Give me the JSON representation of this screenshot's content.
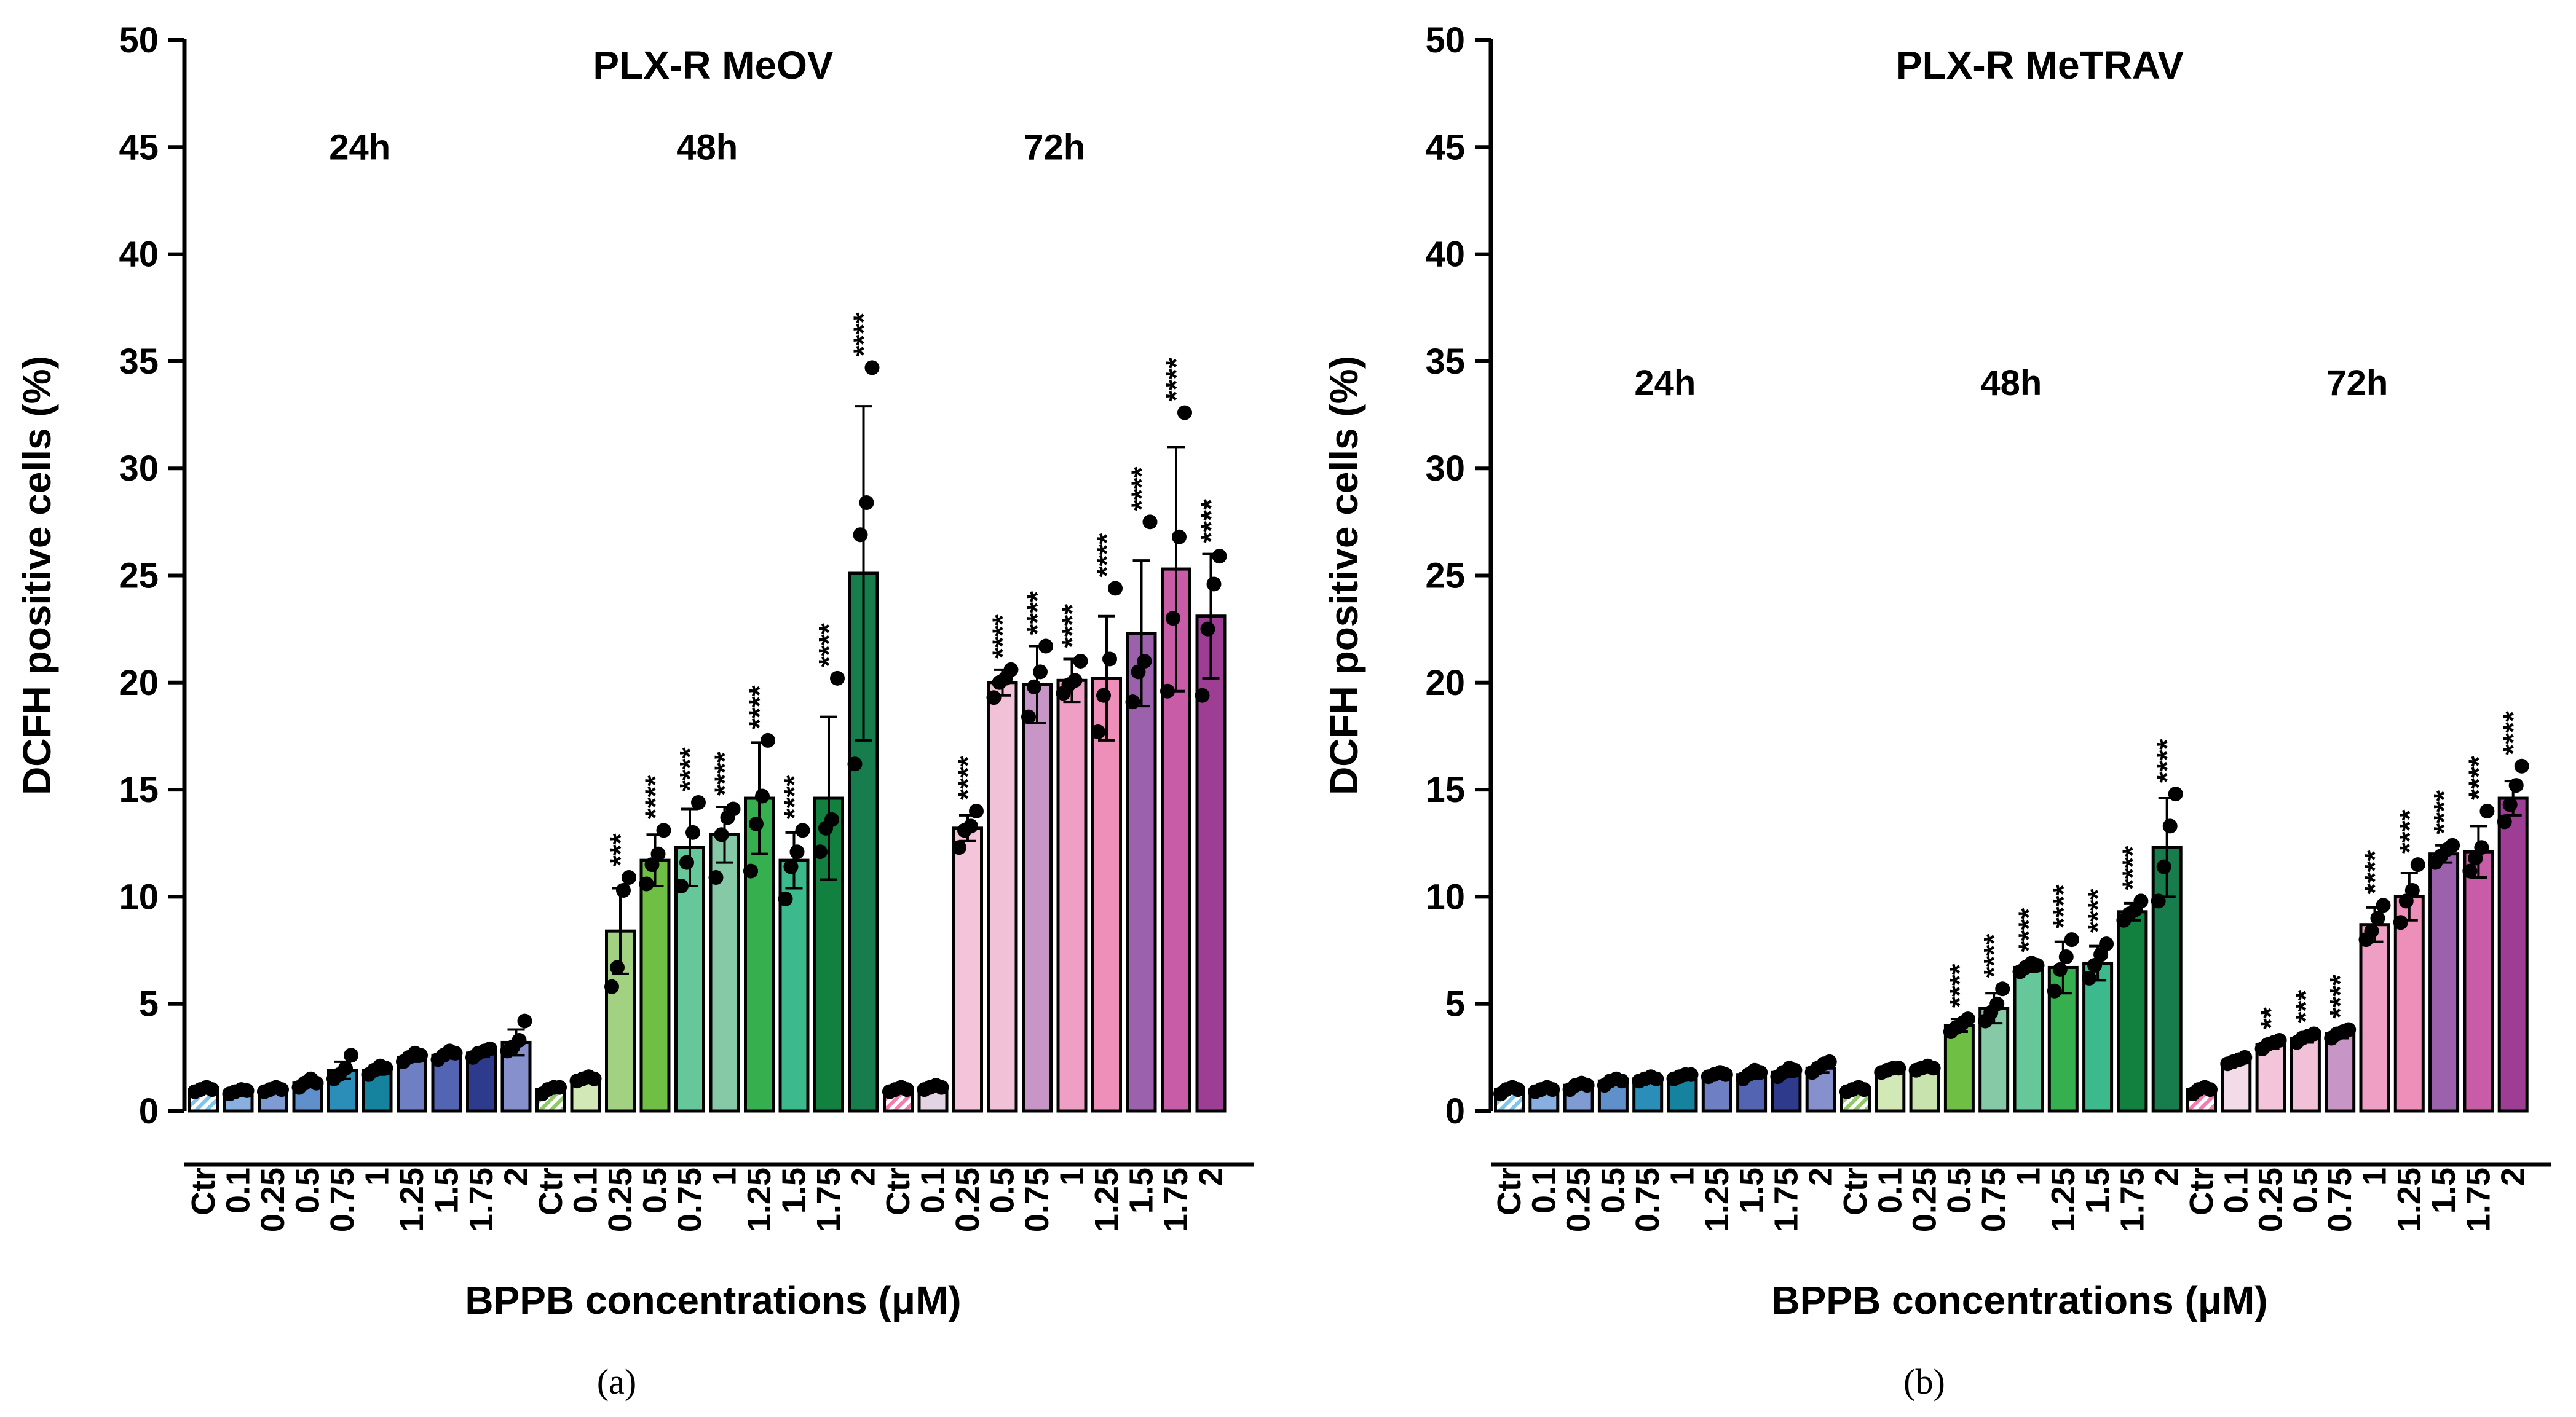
{
  "chart_data": [
    {
      "type": "bar",
      "panel": "(a)",
      "title": "PLX-R MeOV",
      "xlabel": "BPPB concentrations (μM)",
      "ylabel": "DCFH positive cells (%)",
      "ylim": [
        0,
        50
      ],
      "yticks": [
        0,
        5,
        10,
        15,
        20,
        25,
        30,
        35,
        40,
        45,
        50
      ],
      "categories": [
        "Ctr",
        "0.1",
        "0.25",
        "0.5",
        "0.75",
        "1",
        "1.25",
        "1.5",
        "1.75",
        "2",
        "Ctr",
        "0.1",
        "0.25",
        "0.5",
        "0.75",
        "1",
        "1.25",
        "1.5",
        "1.75",
        "2",
        "Ctr",
        "0.1",
        "0.25",
        "0.5",
        "0.75",
        "1",
        "1.25",
        "1.5",
        "1.75",
        "2"
      ],
      "groups": [
        {
          "label": "24h",
          "label_y": 45
        },
        {
          "label": "48h",
          "label_y": 45
        },
        {
          "label": "72h",
          "label_y": 45
        }
      ],
      "values": [
        1.0,
        0.9,
        1.0,
        1.3,
        1.9,
        1.9,
        2.5,
        2.6,
        2.7,
        3.2,
        1.0,
        1.5,
        8.4,
        11.7,
        12.3,
        12.9,
        14.6,
        11.7,
        14.6,
        25.1,
        1.0,
        1.1,
        13.2,
        20.0,
        19.9,
        20.1,
        20.2,
        22.3,
        25.3,
        23.1
      ],
      "errors": [
        0.1,
        0.1,
        0.1,
        0.15,
        0.4,
        0.2,
        0.2,
        0.15,
        0.15,
        0.6,
        0.15,
        0.1,
        2.0,
        1.2,
        1.8,
        1.3,
        2.6,
        1.3,
        3.8,
        7.8,
        0.1,
        0.1,
        0.6,
        0.6,
        1.8,
        1.0,
        2.9,
        3.4,
        5.7,
        2.9
      ],
      "points": [
        [
          0.9,
          1.0,
          1.1,
          1.0
        ],
        [
          0.8,
          0.9,
          1.0,
          0.95
        ],
        [
          0.9,
          1.0,
          1.1,
          1.0
        ],
        [
          1.1,
          1.3,
          1.5,
          1.3
        ],
        [
          1.5,
          1.7,
          2.0,
          2.6
        ],
        [
          1.7,
          1.9,
          2.1,
          2.0
        ],
        [
          2.3,
          2.5,
          2.7,
          2.6
        ],
        [
          2.4,
          2.6,
          2.8,
          2.7
        ],
        [
          2.5,
          2.7,
          2.8,
          2.9
        ],
        [
          2.8,
          3.0,
          3.3,
          4.2
        ],
        [
          0.8,
          1.0,
          1.1,
          1.1
        ],
        [
          1.4,
          1.5,
          1.6,
          1.5
        ],
        [
          5.8,
          6.7,
          10.3,
          10.9
        ],
        [
          10.6,
          11.5,
          12.0,
          13.1
        ],
        [
          10.5,
          11.6,
          13.0,
          14.4
        ],
        [
          10.9,
          12.9,
          13.7,
          14.1
        ],
        [
          11.2,
          13.4,
          14.7,
          17.3
        ],
        [
          9.9,
          11.4,
          12.1,
          13.1
        ],
        [
          12.1,
          13.2,
          13.6,
          20.2
        ],
        [
          16.2,
          26.9,
          28.4,
          34.7
        ],
        [
          0.9,
          1.0,
          1.1,
          1.0
        ],
        [
          1.0,
          1.1,
          1.2,
          1.1
        ],
        [
          12.3,
          13.1,
          13.3,
          14.0
        ],
        [
          19.3,
          20.0,
          20.2,
          20.6
        ],
        [
          18.4,
          19.8,
          20.5,
          21.7
        ],
        [
          19.5,
          19.9,
          20.1,
          21.0
        ],
        [
          17.7,
          19.4,
          21.1,
          24.4
        ],
        [
          19.1,
          20.5,
          21.0,
          27.5
        ],
        [
          19.6,
          23.0,
          26.8,
          32.6
        ],
        [
          19.4,
          22.5,
          24.6,
          25.9
        ]
      ],
      "significance": [
        "",
        "",
        "",
        "",
        "",
        "",
        "",
        "",
        "",
        "",
        "",
        "",
        "***",
        "****",
        "****",
        "****",
        "****",
        "****",
        "****",
        "****",
        "",
        "",
        "****",
        "****",
        "****",
        "****",
        "****",
        "****",
        "****",
        "****"
      ],
      "colors": [
        "#8fc4e6",
        "#87b0e0",
        "#7f9bd4",
        "#6090cc",
        "#2b8eb8",
        "#16839e",
        "#6f7fc4",
        "#5364b3",
        "#2e3b8c",
        "#8590cc",
        "#9ed07c",
        "#d2e8b6",
        "#a2d182",
        "#6fbf45",
        "#66c79a",
        "#86c9a7",
        "#36b04f",
        "#3cba8e",
        "#12803f",
        "#187d4c",
        "#f6b7cd",
        "#e2d4e2",
        "#f4c4db",
        "#f1c1d8",
        "#c896c6",
        "#ef9fc4",
        "#ee8fb9",
        "#9b61ad",
        "#c85ca6",
        "#9d3d94"
      ]
    },
    {
      "type": "bar",
      "panel": "(b)",
      "title": "PLX-R MeTRAV",
      "xlabel": "BPPB concentrations (μM)",
      "ylabel": "DCFH positive cells (%)",
      "ylim": [
        0,
        50
      ],
      "yticks": [
        0,
        5,
        10,
        15,
        20,
        25,
        30,
        35,
        40,
        45,
        50
      ],
      "categories": [
        "Ctr",
        "0.1",
        "0.25",
        "0.5",
        "0.75",
        "1",
        "1.25",
        "1.5",
        "1.75",
        "2",
        "Ctr",
        "0.1",
        "0.25",
        "0.5",
        "0.75",
        "1",
        "1.25",
        "1.5",
        "1.75",
        "2",
        "Ctr",
        "0.1",
        "0.25",
        "0.5",
        "0.75",
        "1",
        "1.25",
        "1.5",
        "1.75",
        "2"
      ],
      "groups": [
        {
          "label": "24h",
          "label_y": 34
        },
        {
          "label": "48h",
          "label_y": 34
        },
        {
          "label": "72h",
          "label_y": 34
        }
      ],
      "values": [
        1.0,
        1.0,
        1.2,
        1.4,
        1.5,
        1.6,
        1.7,
        1.7,
        1.8,
        2.0,
        1.0,
        1.9,
        2.0,
        4.0,
        4.8,
        6.7,
        6.7,
        6.9,
        9.3,
        12.3,
        1.0,
        2.3,
        3.1,
        3.4,
        3.6,
        8.7,
        10.0,
        12.0,
        12.1,
        14.6
      ],
      "errors": [
        0.1,
        0.1,
        0.1,
        0.1,
        0.1,
        0.1,
        0.1,
        0.2,
        0.2,
        0.2,
        0.1,
        0.1,
        0.1,
        0.3,
        0.7,
        0.2,
        1.2,
        0.8,
        0.4,
        2.3,
        0.1,
        0.1,
        0.2,
        0.2,
        0.2,
        0.8,
        1.1,
        0.4,
        1.2,
        0.8
      ],
      "points": [
        [
          0.8,
          1.0,
          1.1,
          1.0
        ],
        [
          0.9,
          1.0,
          1.1,
          1.0
        ],
        [
          1.0,
          1.2,
          1.3,
          1.2
        ],
        [
          1.2,
          1.4,
          1.5,
          1.4
        ],
        [
          1.4,
          1.5,
          1.6,
          1.5
        ],
        [
          1.5,
          1.6,
          1.7,
          1.7
        ],
        [
          1.6,
          1.7,
          1.8,
          1.7
        ],
        [
          1.5,
          1.7,
          1.9,
          1.8
        ],
        [
          1.6,
          1.8,
          2.0,
          1.9
        ],
        [
          1.8,
          2.0,
          2.2,
          2.3
        ],
        [
          0.9,
          1.0,
          1.1,
          1.0
        ],
        [
          1.8,
          1.9,
          2.0,
          2.0
        ],
        [
          1.9,
          2.0,
          2.1,
          2.0
        ],
        [
          3.7,
          3.9,
          4.1,
          4.3
        ],
        [
          4.2,
          4.6,
          5.0,
          5.7
        ],
        [
          6.5,
          6.7,
          6.9,
          6.8
        ],
        [
          5.6,
          6.6,
          7.2,
          8.0
        ],
        [
          6.2,
          6.8,
          7.3,
          7.8
        ],
        [
          8.9,
          9.2,
          9.4,
          9.8
        ],
        [
          9.8,
          11.4,
          13.3,
          14.8
        ],
        [
          0.8,
          1.0,
          1.1,
          1.0
        ],
        [
          2.2,
          2.3,
          2.4,
          2.5
        ],
        [
          2.9,
          3.1,
          3.2,
          3.3
        ],
        [
          3.2,
          3.4,
          3.5,
          3.6
        ],
        [
          3.4,
          3.6,
          3.7,
          3.8
        ],
        [
          8.0,
          8.4,
          9.0,
          9.6
        ],
        [
          8.8,
          9.8,
          10.3,
          11.5
        ],
        [
          11.6,
          11.9,
          12.2,
          12.4
        ],
        [
          11.2,
          11.8,
          12.3,
          14.0
        ],
        [
          13.5,
          14.3,
          15.2,
          16.1
        ]
      ],
      "significance": [
        "",
        "",
        "",
        "",
        "",
        "",
        "",
        "",
        "",
        "",
        "",
        "",
        "",
        "****",
        "****",
        "****",
        "****",
        "****",
        "****",
        "****",
        "",
        "",
        "**",
        "***",
        "****",
        "****",
        "****",
        "****",
        "****",
        "****"
      ],
      "colors": [
        "#8fc4e6",
        "#87b0e0",
        "#7f9bd4",
        "#6090cc",
        "#2b8eb8",
        "#16839e",
        "#6f7fc4",
        "#5364b3",
        "#2e3b8c",
        "#8590cc",
        "#9ed07c",
        "#d2e8b6",
        "#c8e3ad",
        "#6fbf45",
        "#86c9a7",
        "#66c79a",
        "#36b04f",
        "#3cba8e",
        "#12803f",
        "#187d4c",
        "#f6b7cd",
        "#f4dbe8",
        "#f4c4db",
        "#f1c1d8",
        "#c896c6",
        "#ef9fc4",
        "#ee8fb9",
        "#9b61ad",
        "#c85ca6",
        "#9d3d94"
      ]
    }
  ]
}
